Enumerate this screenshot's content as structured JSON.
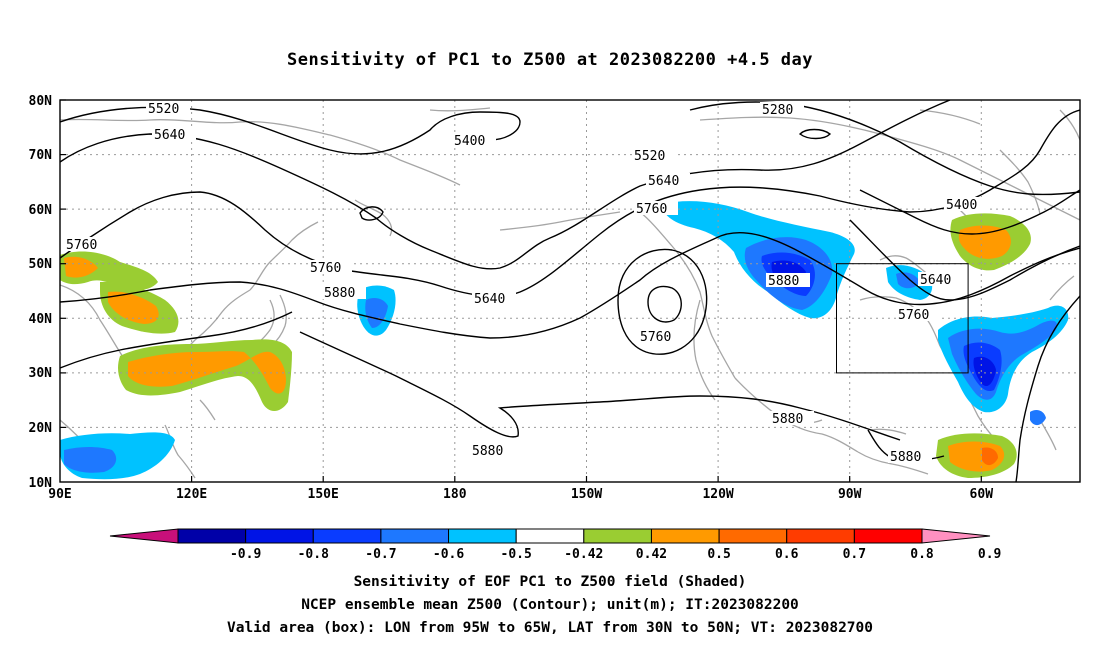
{
  "title": "Sensitivity of PC1 to Z500 at 2023082200 +4.5 day",
  "lat_labels": [
    "80N",
    "70N",
    "60N",
    "50N",
    "40N",
    "30N",
    "20N",
    "10N"
  ],
  "lon_labels": [
    "90E",
    "120E",
    "150E",
    "180",
    "150W",
    "120W",
    "90W",
    "60W"
  ],
  "contour_labels": [
    {
      "text": "5520"
    },
    {
      "text": "5640"
    },
    {
      "text": "5760"
    },
    {
      "text": "5880"
    },
    {
      "text": "5400"
    },
    {
      "text": "5520"
    },
    {
      "text": "5640"
    },
    {
      "text": "5760"
    },
    {
      "text": "5880"
    },
    {
      "text": "5280"
    },
    {
      "text": "5400"
    },
    {
      "text": "5640"
    },
    {
      "text": "5760"
    },
    {
      "text": "5760"
    },
    {
      "text": "5880"
    },
    {
      "text": "5880"
    },
    {
      "text": "5880"
    },
    {
      "text": "5640"
    },
    {
      "text": "5760"
    }
  ],
  "colorbar": {
    "colors": [
      "#c8107a",
      "#0000a8",
      "#0014e6",
      "#0a3cff",
      "#1e78ff",
      "#00c2ff",
      "#ffffff",
      "#9acd32",
      "#ff9a00",
      "#ff6a00",
      "#ff3c00",
      "#ff0000",
      "#ff90c0"
    ],
    "tick_labels": [
      "-0.9",
      "-0.8",
      "-0.7",
      "-0.6",
      "-0.5",
      "-0.42",
      "0.42",
      "0.5",
      "0.6",
      "0.7",
      "0.8",
      "0.9"
    ]
  },
  "caption": {
    "line1": "Sensitivity of EOF PC1 to Z500 field (Shaded)",
    "line2": "NCEP ensemble mean Z500 (Contour); unit(m); IT:2023082200",
    "line3": "Valid area (box): LON from 95W to 65W, LAT from 30N to 50N; VT: 2023082700"
  }
}
